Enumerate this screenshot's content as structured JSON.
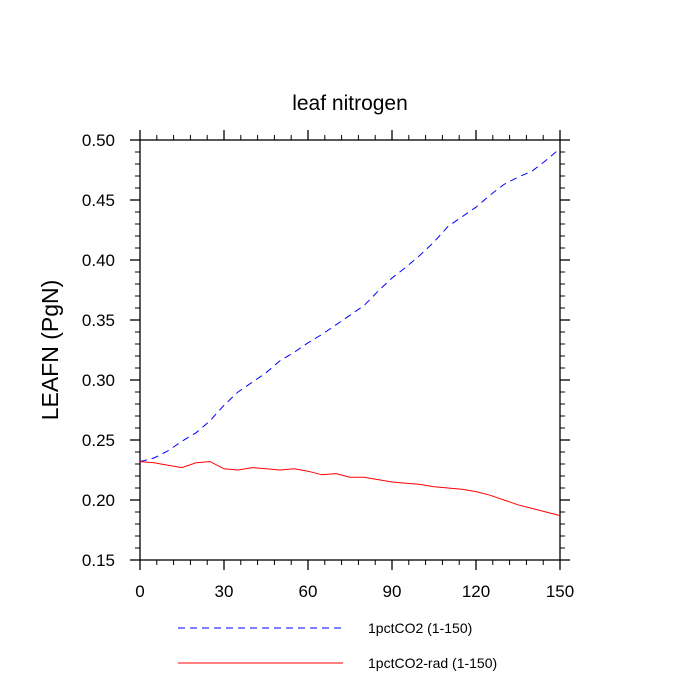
{
  "chart_data": {
    "type": "line",
    "title": "leaf nitrogen",
    "xlabel": "",
    "ylabel": "LEAFN  (PgN)",
    "xlim": [
      0,
      150
    ],
    "ylim": [
      0.15,
      0.5
    ],
    "x_ticks": [
      0,
      30,
      60,
      90,
      120,
      150
    ],
    "x_tick_labels": [
      "0",
      "30",
      "60",
      "90",
      "120",
      "150"
    ],
    "y_ticks": [
      0.15,
      0.2,
      0.25,
      0.3,
      0.35,
      0.4,
      0.45,
      0.5
    ],
    "y_tick_labels": [
      "0.15",
      "0.20",
      "0.25",
      "0.30",
      "0.35",
      "0.40",
      "0.45",
      "0.50"
    ],
    "grid": false,
    "legend_position": "bottom",
    "series": [
      {
        "name": "1pctCO2 (1-150)",
        "color": "#0000ff",
        "line_style": "dashed",
        "x": [
          0,
          5,
          10,
          15,
          20,
          25,
          30,
          35,
          40,
          45,
          50,
          55,
          60,
          65,
          70,
          75,
          80,
          85,
          90,
          95,
          100,
          105,
          110,
          115,
          120,
          125,
          130,
          135,
          140,
          145,
          150
        ],
        "values": [
          0.232,
          0.235,
          0.241,
          0.249,
          0.256,
          0.266,
          0.279,
          0.29,
          0.298,
          0.306,
          0.316,
          0.323,
          0.331,
          0.338,
          0.346,
          0.354,
          0.362,
          0.374,
          0.385,
          0.394,
          0.404,
          0.415,
          0.428,
          0.436,
          0.444,
          0.454,
          0.463,
          0.469,
          0.474,
          0.483,
          0.493
        ]
      },
      {
        "name": "1pctCO2-rad (1-150)",
        "color": "#ff0000",
        "line_style": "solid",
        "x": [
          0,
          5,
          10,
          15,
          20,
          25,
          30,
          35,
          40,
          45,
          50,
          55,
          60,
          65,
          70,
          75,
          80,
          85,
          90,
          95,
          100,
          105,
          110,
          115,
          120,
          125,
          130,
          135,
          140,
          145,
          150
        ],
        "values": [
          0.232,
          0.231,
          0.229,
          0.227,
          0.231,
          0.232,
          0.226,
          0.225,
          0.227,
          0.226,
          0.225,
          0.226,
          0.224,
          0.221,
          0.222,
          0.219,
          0.219,
          0.217,
          0.215,
          0.214,
          0.213,
          0.211,
          0.21,
          0.209,
          0.207,
          0.204,
          0.2,
          0.196,
          0.193,
          0.19,
          0.187
        ]
      }
    ]
  }
}
